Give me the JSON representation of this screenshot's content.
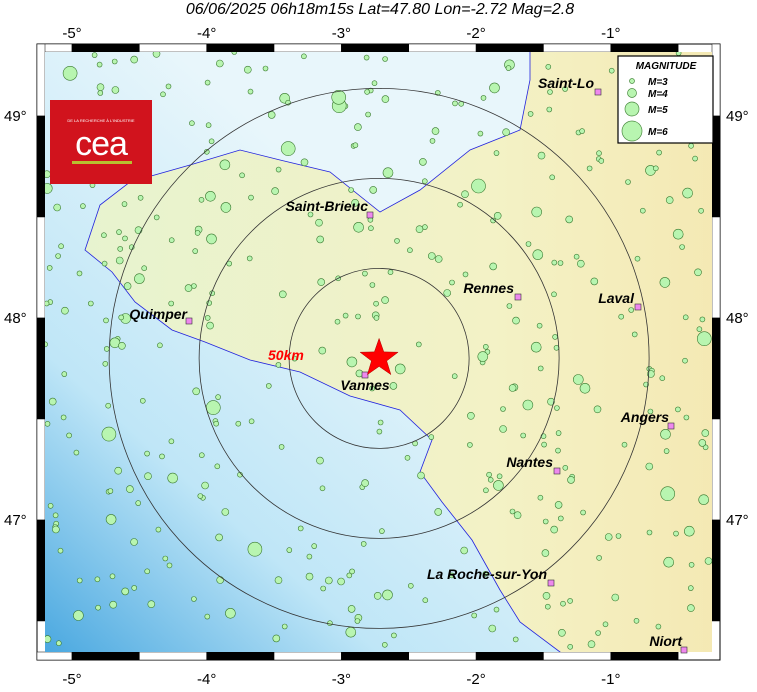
{
  "title": "06/06/2025 06h18m15s   Lat=47.80  Lon=-2.72  Mag=2.8",
  "event": {
    "date": "06/06/2025",
    "time": "06h18m15s",
    "lat": 47.8,
    "lon": -2.72,
    "mag": 2.8
  },
  "axes": {
    "lon_ticks": [
      "-5°",
      "-4°",
      "-3°",
      "-2°",
      "-1°"
    ],
    "lat_ticks": [
      "49°",
      "48°",
      "47°"
    ]
  },
  "distance_label": "50km",
  "cities": [
    {
      "name": "Saint-Lo"
    },
    {
      "name": "Saint-Brieuc"
    },
    {
      "name": "Rennes"
    },
    {
      "name": "Laval"
    },
    {
      "name": "Quimper"
    },
    {
      "name": "Vannes"
    },
    {
      "name": "Angers"
    },
    {
      "name": "Nantes"
    },
    {
      "name": "La Roche-sur-Yon"
    },
    {
      "name": "Niort"
    }
  ],
  "legend": {
    "title": "MAGNITUDE",
    "items": [
      {
        "label": "M=3"
      },
      {
        "label": "M=4"
      },
      {
        "label": "M=5"
      },
      {
        "label": "M=6"
      }
    ]
  },
  "logo": {
    "tagline": "DE LA RECHERCHE À L'INDUSTRIE",
    "text": "cea"
  },
  "colors": {
    "epicenter": "#ff0000",
    "quake": "#b8f5b0",
    "sea": "#cfeefa",
    "land": "#f2f3c8",
    "city": "#ee88ee",
    "coast": "#2222dd",
    "logo": "#d1131d"
  }
}
